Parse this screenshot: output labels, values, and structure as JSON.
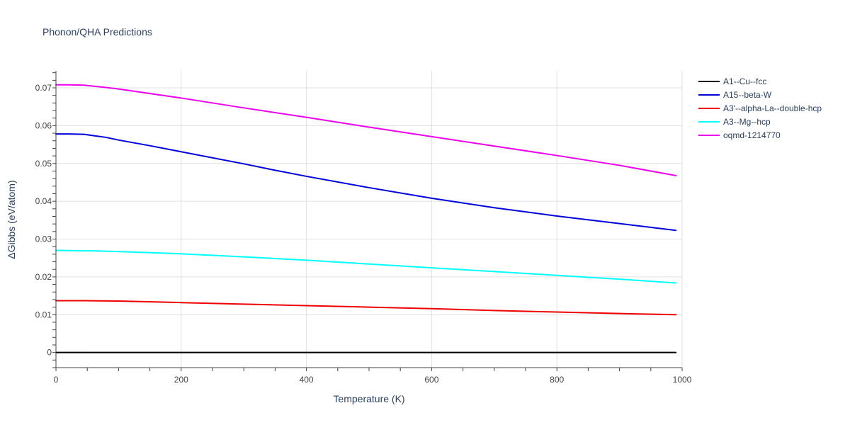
{
  "chart_data": {
    "type": "line",
    "title": "Phonon/QHA Predictions",
    "xlabel": "Temperature (K)",
    "ylabel": "ΔGibbs (eV/atom)",
    "xlim": [
      0,
      1000
    ],
    "ylim": [
      -0.004,
      0.0745
    ],
    "xticks": [
      0,
      200,
      400,
      600,
      800,
      1000
    ],
    "xtick_labels": [
      "0",
      "200",
      "400",
      "600",
      "800",
      "1000"
    ],
    "yticks": [
      0,
      0.01,
      0.02,
      0.03,
      0.04,
      0.05,
      0.06,
      0.07
    ],
    "ytick_labels": [
      "0",
      "0.01",
      "0.02",
      "0.03",
      "0.04",
      "0.05",
      "0.06",
      "0.07"
    ],
    "grid": true,
    "legend_position": "top-right outside",
    "series": [
      {
        "name": "A1--Cu--fcc",
        "color": "#000000",
        "x": [
          0,
          100,
          200,
          300,
          400,
          500,
          600,
          700,
          800,
          900,
          990
        ],
        "y": [
          0,
          0,
          0,
          0,
          0,
          0,
          0,
          0,
          0,
          0,
          0
        ]
      },
      {
        "name": "A15--beta-W",
        "color": "#0000dd",
        "x": [
          0,
          20,
          45,
          80,
          100,
          150,
          200,
          300,
          350,
          400,
          500,
          600,
          700,
          800,
          900,
          990
        ],
        "y": [
          0.0578,
          0.0578,
          0.0577,
          0.0569,
          0.0562,
          0.0547,
          0.0531,
          0.0499,
          0.0482,
          0.0466,
          0.0436,
          0.0408,
          0.0383,
          0.0361,
          0.0341,
          0.0323
        ]
      },
      {
        "name": "A3'--alpha-La--double-hcp",
        "color": "#ee0000",
        "x": [
          0,
          50,
          100,
          200,
          300,
          400,
          500,
          600,
          700,
          800,
          900,
          990
        ],
        "y": [
          0.0137,
          0.0137,
          0.0136,
          0.0132,
          0.0128,
          0.0124,
          0.012,
          0.0116,
          0.0111,
          0.0107,
          0.0103,
          0.01
        ]
      },
      {
        "name": "A3--Mg--hcp",
        "color": "#00ffff",
        "x": [
          0,
          50,
          100,
          200,
          300,
          400,
          500,
          600,
          700,
          800,
          900,
          990
        ],
        "y": [
          0.027,
          0.0269,
          0.0267,
          0.0261,
          0.0253,
          0.0244,
          0.0234,
          0.0224,
          0.0214,
          0.0204,
          0.0194,
          0.0184
        ]
      },
      {
        "name": "oqmd-1214770",
        "color": "#ee00ee",
        "x": [
          0,
          20,
          45,
          80,
          100,
          200,
          300,
          400,
          500,
          600,
          700,
          800,
          900,
          990
        ],
        "y": [
          0.0708,
          0.0708,
          0.0707,
          0.0701,
          0.0697,
          0.0673,
          0.0647,
          0.0622,
          0.0596,
          0.0571,
          0.0546,
          0.0521,
          0.0495,
          0.0468
        ]
      }
    ]
  }
}
